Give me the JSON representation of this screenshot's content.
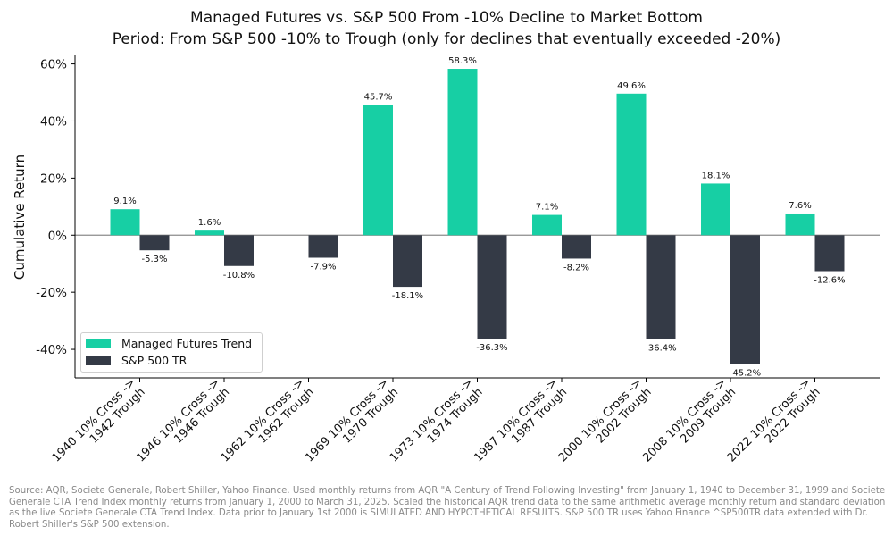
{
  "chart_data": {
    "type": "bar",
    "title": "Managed Futures vs. S&P 500 From -10% Decline to Market Bottom",
    "subtitle": "Period: From S&P 500 -10% to Trough (only for declines that eventually exceeded -20%)",
    "xlabel": "",
    "ylabel": "Cumulative Return",
    "ylim": [
      -50,
      63
    ],
    "yticks": [
      -40,
      -20,
      0,
      20,
      40,
      60
    ],
    "ytick_labels": [
      "-40%",
      "-20%",
      "0%",
      "20%",
      "40%",
      "60%"
    ],
    "grid": false,
    "legend_position": "lower-left",
    "categories": [
      [
        "1940 10% Cross ->",
        "1942 Trough"
      ],
      [
        "1946 10% Cross ->",
        "1946 Trough"
      ],
      [
        "1962 10% Cross ->",
        "1962 Trough"
      ],
      [
        "1969 10% Cross ->",
        "1970 Trough"
      ],
      [
        "1973 10% Cross ->",
        "1974 Trough"
      ],
      [
        "1987 10% Cross ->",
        "1987 Trough"
      ],
      [
        "2000 10% Cross ->",
        "2002 Trough"
      ],
      [
        "2008 10% Cross ->",
        "2009 Trough"
      ],
      [
        "2022 10% Cross ->",
        "2022 Trough"
      ]
    ],
    "series": [
      {
        "name": "Managed Futures Trend",
        "color": "#17cfa4",
        "values": [
          9.1,
          1.6,
          null,
          45.7,
          58.3,
          7.1,
          49.6,
          18.1,
          7.6
        ],
        "labels": [
          "9.1%",
          "1.6%",
          "",
          "45.7%",
          "58.3%",
          "7.1%",
          "49.6%",
          "18.1%",
          "7.6%"
        ]
      },
      {
        "name": "S&P 500 TR",
        "color": "#343a46",
        "values": [
          -5.3,
          -10.8,
          -7.9,
          -18.1,
          -36.3,
          -8.2,
          -36.4,
          -45.2,
          -12.6
        ],
        "labels": [
          "-5.3%",
          "-10.8%",
          "-7.9%",
          "-18.1%",
          "-36.3%",
          "-8.2%",
          "-36.4%",
          "-45.2%",
          "-12.6%"
        ]
      }
    ]
  },
  "footer": {
    "source": "Source: AQR, Societe Generale, Robert Shiller, Yahoo Finance. Used monthly returns from AQR \"A Century of Trend Following Investing\" from January 1, 1940 to December 31, 1999 and Societe Generale CTA Trend Index monthly returns from January 1, 2000 to March 31, 2025. Scaled the historical AQR trend data to the same arithmetic average monthly return and standard deviation as the live Societe Generale CTA Trend Index. Data prior to January 1st 2000 is SIMULATED AND HYPOTHETICAL RESULTS. S&P 500 TR uses Yahoo Finance ^SP500TR data extended with Dr. Robert Shiller's S&P 500 extension."
  }
}
